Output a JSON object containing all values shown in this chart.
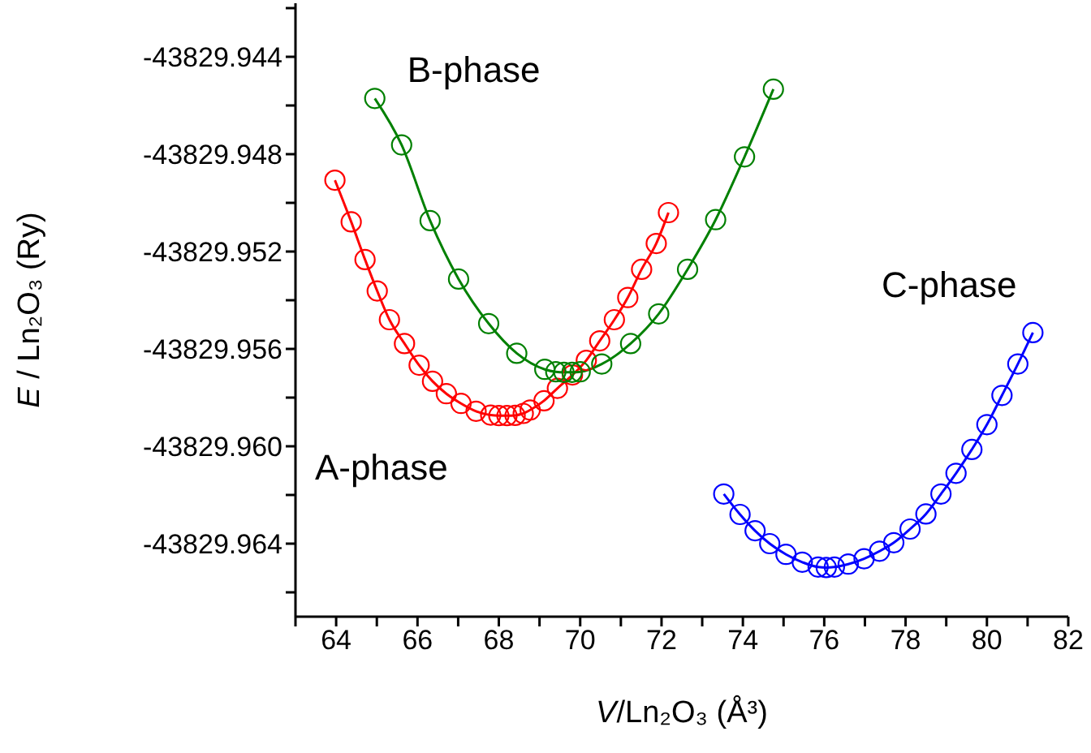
{
  "chart_data": {
    "type": "line",
    "xlabel": "V/Ln₂O₃ (Å³)",
    "ylabel": "E / Ln₂O₃ (Ry)",
    "xlim": [
      63,
      82
    ],
    "ylim": [
      -43829.967,
      -43829.9418
    ],
    "xticks": [
      {
        "value": 63,
        "label": null
      },
      64,
      {
        "value": 65,
        "label": null
      },
      66,
      {
        "value": 67,
        "label": null
      },
      68,
      {
        "value": 69,
        "label": null
      },
      70,
      {
        "value": 71,
        "label": null
      },
      72,
      {
        "value": 73,
        "label": null
      },
      74,
      {
        "value": 75,
        "label": null
      },
      76,
      {
        "value": 77,
        "label": null
      },
      78,
      {
        "value": 79,
        "label": null
      },
      80,
      {
        "value": 81,
        "label": null
      },
      82
    ],
    "yticks": [
      {
        "value": -43829.966,
        "label": null
      },
      -43829.964,
      {
        "value": -43829.962,
        "label": null
      },
      {
        "value": -43829.96,
        "label": "-43829.960"
      },
      {
        "value": -43829.958,
        "label": null
      },
      -43829.956,
      {
        "value": -43829.954,
        "label": null
      },
      -43829.952,
      {
        "value": -43829.95,
        "label": null
      },
      -43829.948,
      {
        "value": -43829.946,
        "label": null
      },
      -43829.944,
      {
        "value": -43829.942,
        "label": null
      }
    ],
    "marker": "circle",
    "line_style": "solid",
    "series": [
      {
        "name": "A-phase",
        "color": "#ff0000",
        "x": [
          63.97,
          64.37,
          64.71,
          65.01,
          65.31,
          65.68,
          66.04,
          66.37,
          66.71,
          67.07,
          67.44,
          67.8,
          68.0,
          68.2,
          68.4,
          68.6,
          68.77,
          69.11,
          69.44,
          69.81,
          70.15,
          70.48,
          70.84,
          71.17,
          71.51,
          71.87,
          72.17
        ],
        "values": [
          -43829.94907,
          -43829.95078,
          -43829.95233,
          -43829.95362,
          -43829.9548,
          -43829.95578,
          -43829.95667,
          -43829.95733,
          -43829.95784,
          -43829.95824,
          -43829.95856,
          -43829.95872,
          -43829.95874,
          -43829.95874,
          -43829.95873,
          -43829.95865,
          -43829.95851,
          -43829.95813,
          -43829.95762,
          -43829.95707,
          -43829.95647,
          -43829.95567,
          -43829.9548,
          -43829.95389,
          -43829.95273,
          -43829.95167,
          -43829.9504
        ]
      },
      {
        "name": "B-phase",
        "color": "#008000",
        "x": [
          64.95,
          65.61,
          66.31,
          67.01,
          67.75,
          68.44,
          69.13,
          69.4,
          69.6,
          69.8,
          70.0,
          70.53,
          71.24,
          71.93,
          72.64,
          73.33,
          74.04,
          74.75
        ],
        "values": [
          -43829.94571,
          -43829.94762,
          -43829.95073,
          -43829.95313,
          -43829.95496,
          -43829.95618,
          -43829.95684,
          -43829.95694,
          -43829.95696,
          -43829.95696,
          -43829.95694,
          -43829.95662,
          -43829.95578,
          -43829.95456,
          -43829.95273,
          -43829.95069,
          -43829.94811,
          -43829.94533
        ]
      },
      {
        "name": "C-phase",
        "color": "#0000ff",
        "x": [
          73.53,
          73.93,
          74.3,
          74.66,
          75.06,
          75.46,
          75.85,
          76.05,
          76.25,
          76.59,
          76.98,
          77.36,
          77.71,
          78.11,
          78.5,
          78.87,
          79.24,
          79.63,
          80.0,
          80.37,
          80.76,
          81.13
        ],
        "values": [
          -43829.96196,
          -43829.9628,
          -43829.96347,
          -43829.964,
          -43829.96444,
          -43829.96476,
          -43829.96496,
          -43829.96498,
          -43829.96496,
          -43829.96484,
          -43829.96462,
          -43829.96431,
          -43829.96396,
          -43829.9634,
          -43829.96278,
          -43829.96196,
          -43829.96111,
          -43829.96013,
          -43829.95911,
          -43829.95791,
          -43829.95662,
          -43829.95533
        ]
      }
    ]
  }
}
